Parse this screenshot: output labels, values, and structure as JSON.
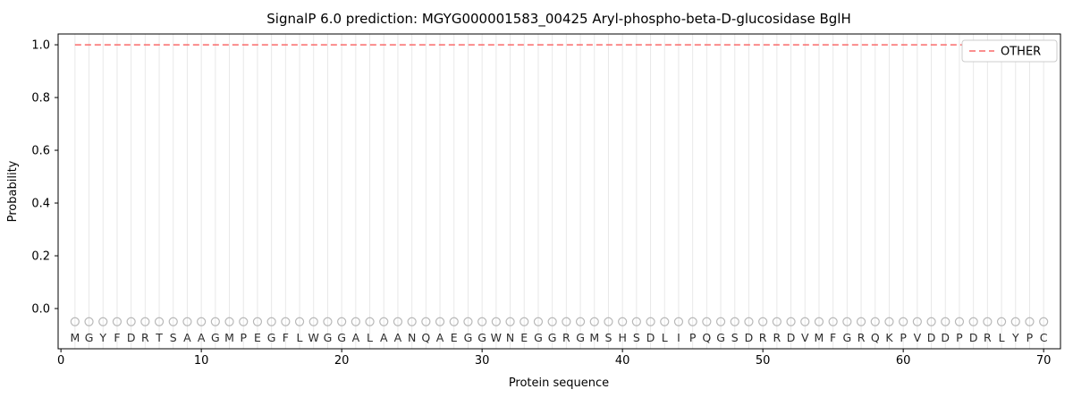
{
  "chart_data": {
    "type": "line",
    "title": "SignalP 6.0 prediction: MGYG000001583_00425 Aryl-phospho-beta-D-glucosidase BglH",
    "xlabel": "Protein sequence",
    "ylabel": "Probability",
    "xlim": [
      -0.2,
      71.2
    ],
    "ylim": [
      -0.1525,
      1.0409
    ],
    "xticks": [
      0,
      10,
      20,
      30,
      40,
      50,
      60,
      70
    ],
    "yticks": [
      0.0,
      0.2,
      0.4,
      0.6,
      0.8,
      1.0
    ],
    "grid": {
      "vertical_per_residue": true,
      "color": "#e8e8e8"
    },
    "legend": {
      "position": "upper right",
      "entries": [
        {
          "label": "OTHER",
          "color": "#f96a6a",
          "dash": true
        }
      ]
    },
    "series": [
      {
        "name": "OTHER",
        "style": "dashed",
        "color": "#f96a6a",
        "y_constant": 1.0,
        "x_start": 1,
        "x_end": 70
      }
    ],
    "markers": {
      "shape": "open-circle",
      "y": -0.05,
      "color": "#b8b8b8"
    },
    "sequence": "MGYFDRTSAAGMPEGFLWGGALAANQAEGGWNEGGRGMSHSDLIPQGSDRRDVMFGRQKPVDDPDRLYPC",
    "sequence_length": 70
  }
}
